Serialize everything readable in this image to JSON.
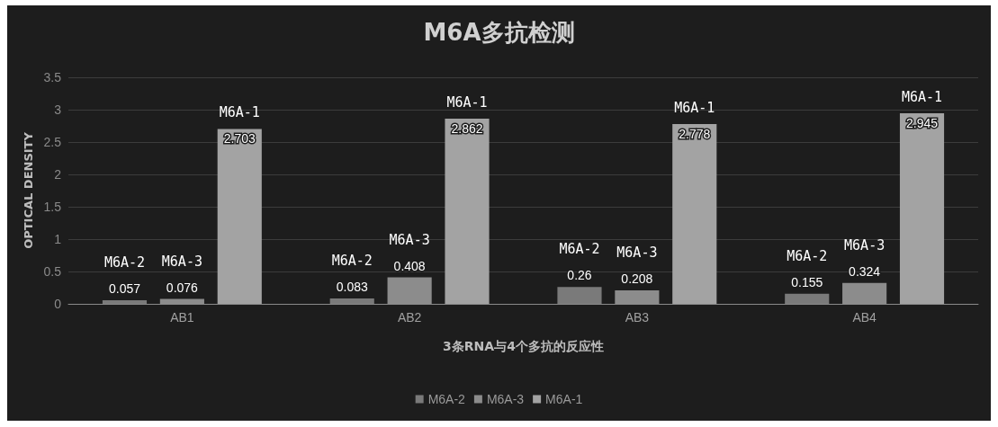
{
  "chart_data": {
    "type": "bar",
    "title": "M6A多抗检测",
    "xlabel": "3条RNA与4个多抗的反应性",
    "ylabel": "OPTICAL DENSITY",
    "categories": [
      "AB1",
      "AB2",
      "AB3",
      "AB4"
    ],
    "series": [
      {
        "name": "M6A-2",
        "color": "#7a7a7a",
        "values": [
          0.057,
          0.083,
          0.26,
          0.155
        ]
      },
      {
        "name": "M6A-3",
        "color": "#8c8c8c",
        "values": [
          0.076,
          0.408,
          0.208,
          0.324
        ]
      },
      {
        "name": "M6A-1",
        "color": "#a3a3a3",
        "values": [
          2.703,
          2.862,
          2.778,
          2.945
        ]
      }
    ],
    "ylim": [
      0,
      3.5
    ],
    "yticks": [
      0,
      0.5,
      1,
      1.5,
      2,
      2.5,
      3,
      3.5
    ],
    "grid": "y",
    "legend": "bottom",
    "data_labels": true
  }
}
